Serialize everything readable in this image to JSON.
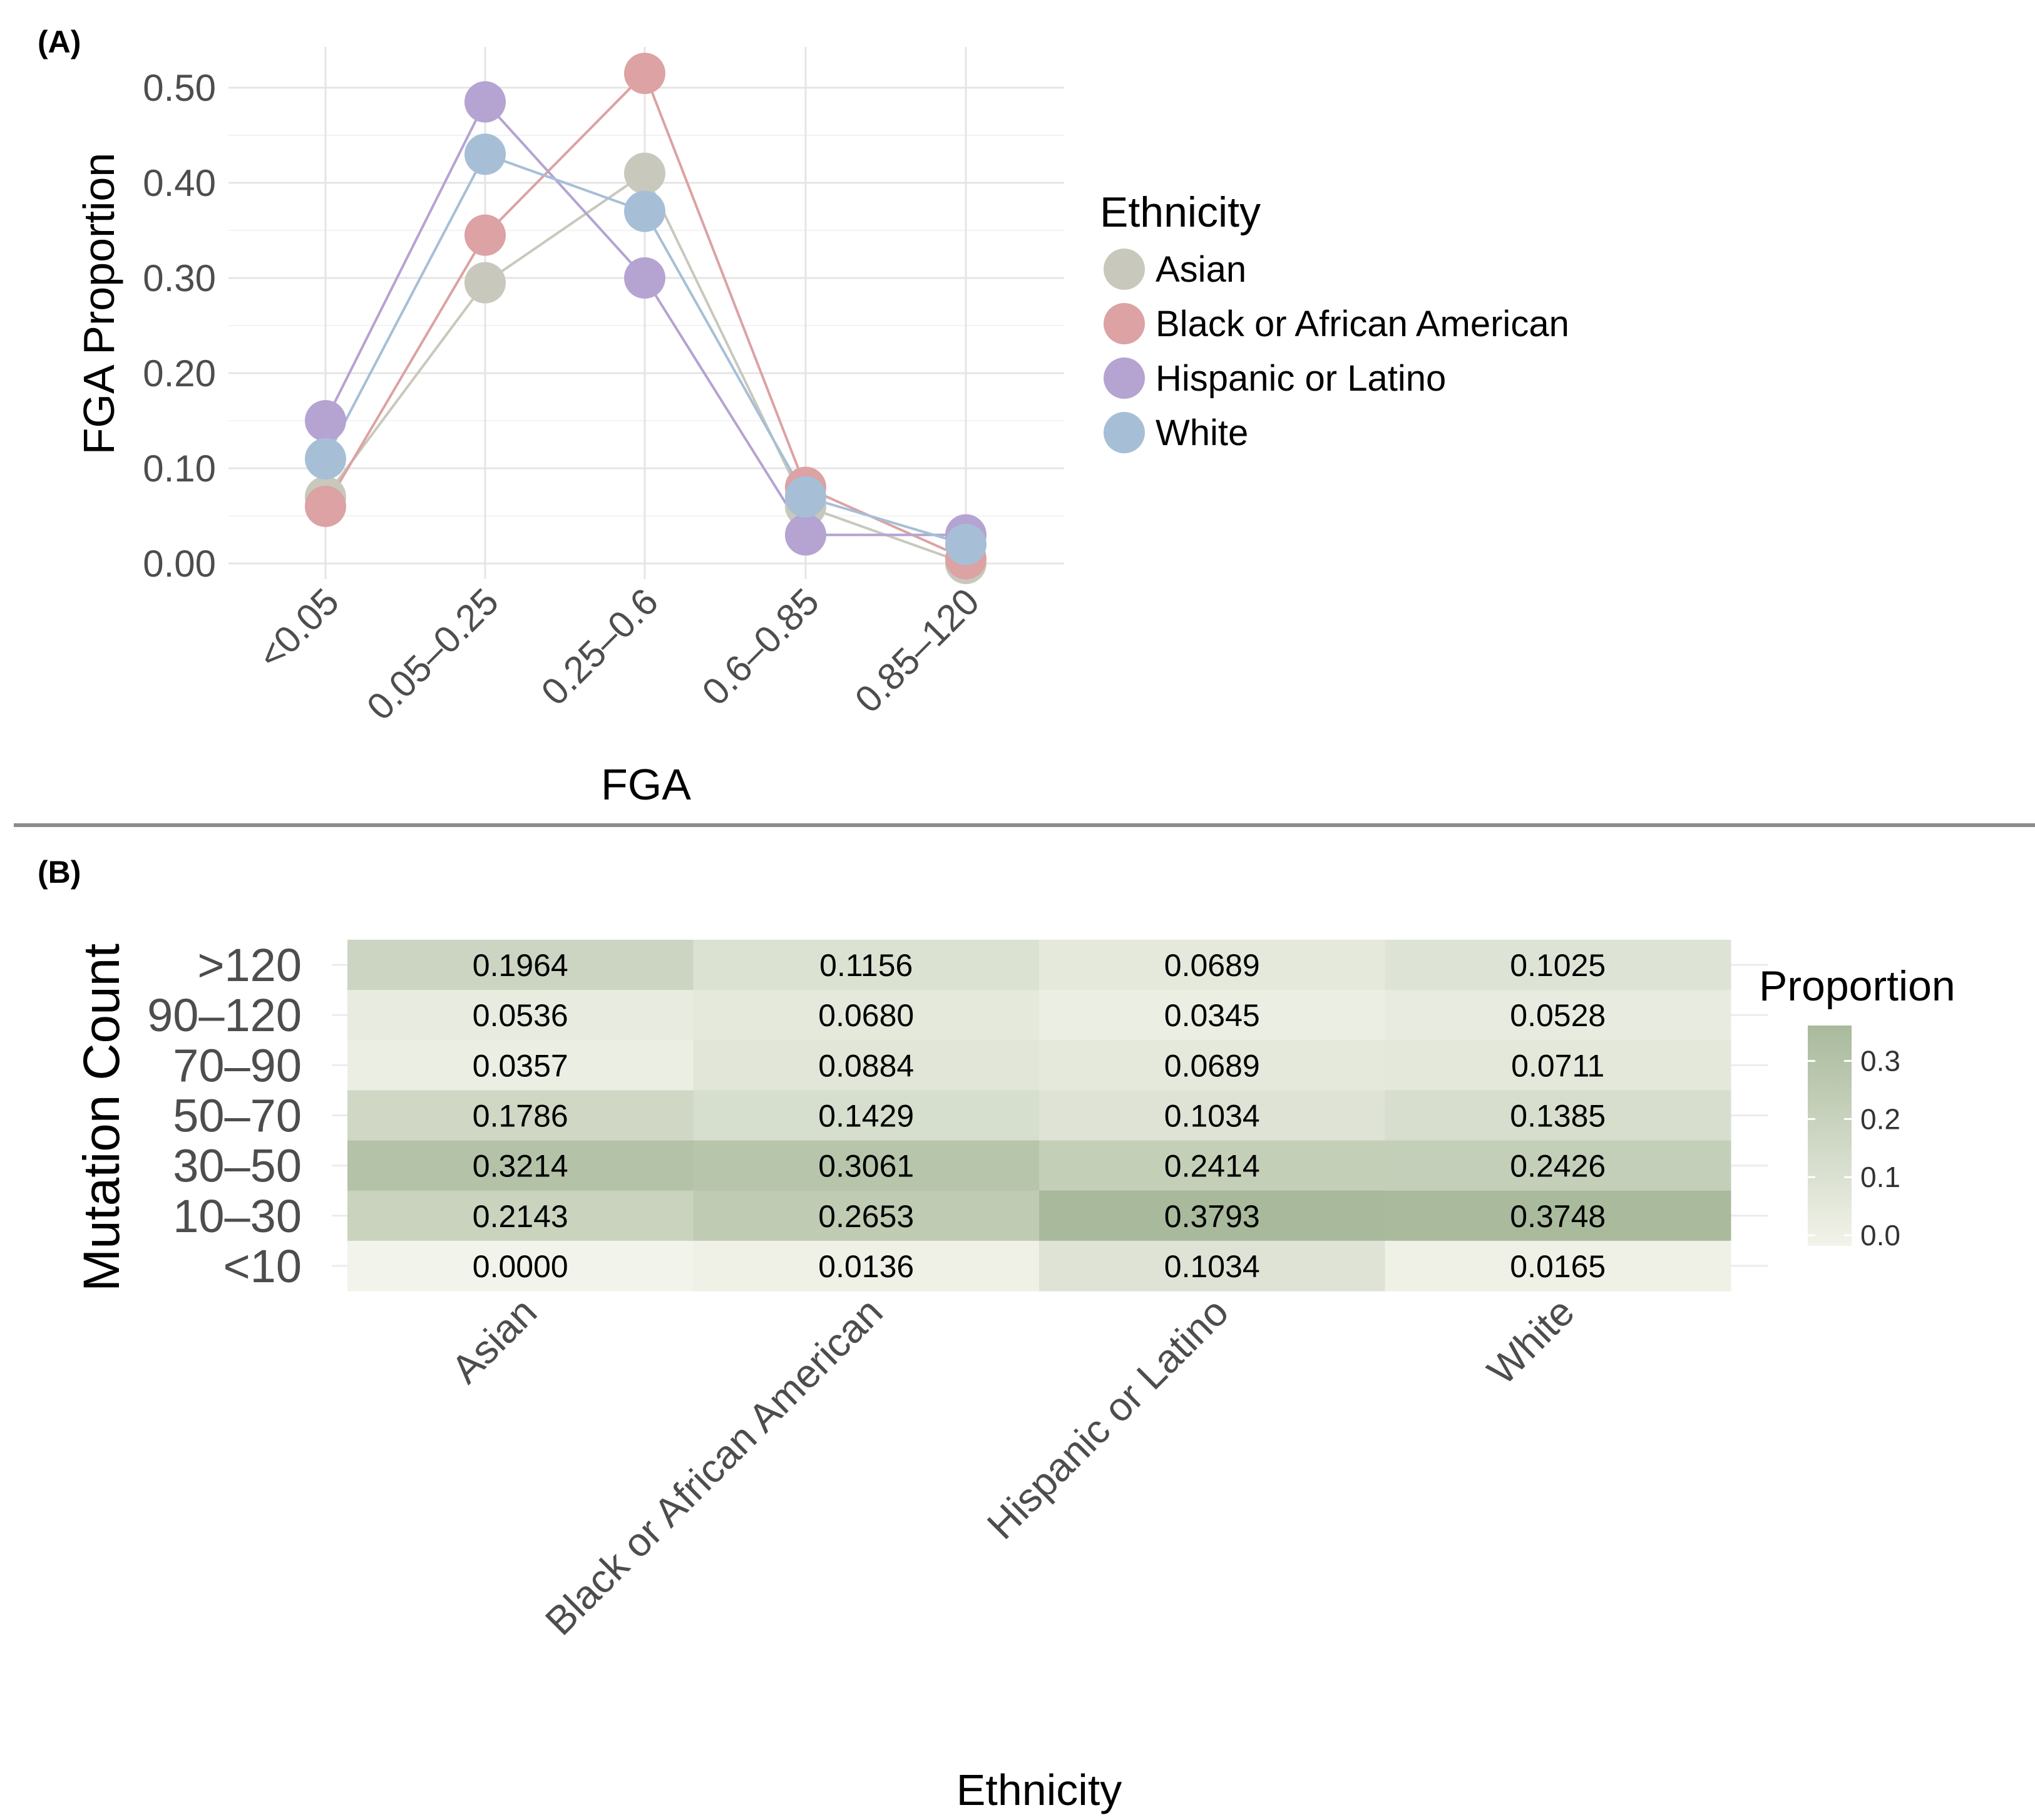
{
  "panels": {
    "a": {
      "label": "(A)"
    },
    "b": {
      "label": "(B)"
    }
  },
  "chart_data": [
    {
      "type": "line",
      "categories": [
        "<0.05",
        "0.05–0.25",
        "0.25–0.6",
        "0.6–0.85",
        "0.85–120"
      ],
      "xlabel": "FGA",
      "ylabel": "FGA Proportion",
      "ylim": [
        0,
        0.5
      ],
      "yticks": [
        "0.00",
        "0.10",
        "0.20",
        "0.30",
        "0.40",
        "0.50"
      ],
      "grid": true,
      "legend": {
        "title": "Ethnicity",
        "placement": "right"
      },
      "series": [
        {
          "name": "Asian",
          "color": "#c8c8bc",
          "values": [
            0.07,
            0.295,
            0.41,
            0.06,
            0.0
          ]
        },
        {
          "name": "Black or African American",
          "color": "#dca2a4",
          "values": [
            0.06,
            0.345,
            0.515,
            0.08,
            0.005
          ]
        },
        {
          "name": "Hispanic or Latino",
          "color": "#b5a3d2",
          "values": [
            0.15,
            0.485,
            0.3,
            0.03,
            0.03
          ]
        },
        {
          "name": "White",
          "color": "#a6bfd6",
          "values": [
            0.11,
            0.43,
            0.37,
            0.07,
            0.02
          ]
        }
      ]
    },
    {
      "type": "heatmap",
      "x": [
        "Asian",
        "Black or African American",
        "Hispanic or Latino",
        "White"
      ],
      "y": [
        ">120",
        "90–120",
        "70–90",
        "50–70",
        "30–50",
        "10–30",
        "<10"
      ],
      "xlabel": "Ethnicity",
      "ylabel": "Mutation Count",
      "values": [
        [
          0.1964,
          0.1156,
          0.0689,
          0.1025
        ],
        [
          0.0536,
          0.068,
          0.0345,
          0.0528
        ],
        [
          0.0357,
          0.0884,
          0.0689,
          0.0711
        ],
        [
          0.1786,
          0.1429,
          0.1034,
          0.1385
        ],
        [
          0.3214,
          0.3061,
          0.2414,
          0.2426
        ],
        [
          0.2143,
          0.2653,
          0.3793,
          0.3748
        ],
        [
          0.0,
          0.0136,
          0.1034,
          0.0165
        ]
      ],
      "value_labels": [
        [
          "0.1964",
          "0.1156",
          "0.0689",
          "0.1025"
        ],
        [
          "0.0536",
          "0.0680",
          "0.0345",
          "0.0528"
        ],
        [
          "0.0357",
          "0.0884",
          "0.0689",
          "0.0711"
        ],
        [
          "0.1786",
          "0.1429",
          "0.1034",
          "0.1385"
        ],
        [
          "0.3214",
          "0.3061",
          "0.2414",
          "0.2426"
        ],
        [
          "0.2143",
          "0.2653",
          "0.3793",
          "0.3748"
        ],
        [
          "0.0000",
          "0.0136",
          "0.1034",
          "0.0165"
        ]
      ],
      "color_scale": {
        "low": "#f2f3ea",
        "high": "#a9ba9c",
        "range": [
          0,
          0.3793
        ]
      },
      "colorbar": {
        "title": "Proportion",
        "ticks": [
          "0.0",
          "0.1",
          "0.2",
          "0.3"
        ],
        "tick_values": [
          0,
          0.1,
          0.2,
          0.3
        ]
      }
    }
  ]
}
